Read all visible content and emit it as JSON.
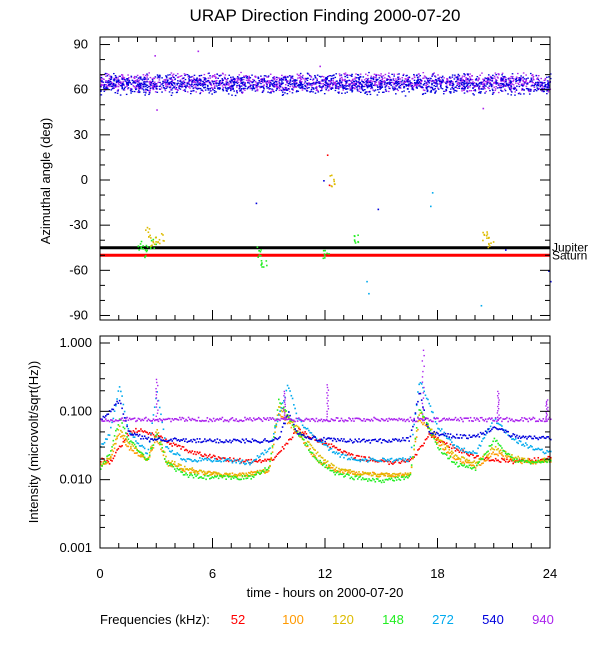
{
  "title": "URAP Direction Finding  2000-07-20",
  "xlabel": "time - hours on 2000-07-20",
  "legend_label": "Frequencies (kHz):",
  "colors": {
    "52": "#ff0000",
    "100": "#ff9900",
    "120": "#ddbb00",
    "148": "#22ee22",
    "272": "#00aaee",
    "540": "#0000dd",
    "940": "#aa22ee",
    "jupiter": "#000000",
    "saturn": "#ff0000"
  },
  "chart_data": [
    {
      "type": "scatter",
      "title": "URAP Direction Finding  2000-07-20",
      "ylabel": "Azimuthal angle (deg)",
      "xlim": [
        0,
        24
      ],
      "ylim": [
        -93,
        95
      ],
      "x_ticks": [
        0,
        6,
        12,
        18,
        24
      ],
      "y_ticks": [
        90,
        60,
        30,
        0,
        -30,
        -60,
        -90
      ],
      "reference_lines": [
        {
          "name": "Jupiter",
          "y": -45,
          "color": "#000000"
        },
        {
          "name": "Saturn",
          "y": -50,
          "color": "#ff0000"
        }
      ],
      "series": [
        {
          "name": "940",
          "band": {
            "x": [
              0,
              24
            ],
            "y_range": [
              58,
              72
            ]
          },
          "outliers": [
            [
              2.9,
              83
            ],
            [
              5.2,
              86
            ],
            [
              3.0,
              47
            ],
            [
              11.7,
              76
            ],
            [
              20.4,
              48
            ]
          ]
        },
        {
          "name": "540",
          "band": {
            "x": [
              0,
              24
            ],
            "y_range": [
              56,
              72
            ]
          },
          "points": [
            [
              8.3,
              -15
            ],
            [
              11.9,
              0
            ],
            [
              14.8,
              -19
            ],
            [
              21.6,
              -46
            ],
            [
              23.9,
              -60
            ],
            [
              24.0,
              -67
            ]
          ]
        },
        {
          "name": "148",
          "clusters": [
            [
              2.1,
              -44
            ],
            [
              2.4,
              -47
            ],
            [
              2.8,
              -41
            ],
            [
              8.4,
              -47
            ],
            [
              8.7,
              -55
            ],
            [
              12.0,
              -49
            ],
            [
              13.6,
              -40
            ]
          ]
        },
        {
          "name": "120",
          "clusters": [
            [
              2.5,
              -35
            ],
            [
              2.8,
              -40
            ],
            [
              3.2,
              -38
            ],
            [
              12.4,
              0
            ],
            [
              20.5,
              -37
            ],
            [
              20.8,
              -41
            ]
          ]
        },
        {
          "name": "272",
          "points": [
            [
              14.2,
              -67
            ],
            [
              14.3,
              -75
            ],
            [
              17.7,
              -8
            ],
            [
              17.6,
              -17
            ],
            [
              20.3,
              -83
            ]
          ]
        },
        {
          "name": "52",
          "points": [
            [
              12.1,
              17
            ],
            [
              12.2,
              -3
            ]
          ]
        }
      ]
    },
    {
      "type": "line",
      "ylabel": "Intensity (microvolt/sqrt(Hz))",
      "xlim": [
        0,
        24
      ],
      "y_scale": "log",
      "ylim": [
        0.001,
        1.0
      ],
      "x_ticks": [
        0,
        6,
        12,
        18,
        24
      ],
      "y_ticks": [
        1.0,
        0.1,
        0.01,
        0.001
      ],
      "y_tick_labels": [
        "1.000",
        "0.100",
        "0.010",
        "0.001"
      ],
      "series": [
        {
          "name": "52",
          "points": [
            [
              0,
              0.02
            ],
            [
              0.5,
              0.018
            ],
            [
              1.0,
              0.03
            ],
            [
              1.5,
              0.05
            ],
            [
              2.0,
              0.055
            ],
            [
              3.0,
              0.045
            ],
            [
              4.0,
              0.032
            ],
            [
              5.0,
              0.025
            ],
            [
              6.0,
              0.022
            ],
            [
              7.0,
              0.02
            ],
            [
              8.0,
              0.019
            ],
            [
              9.0,
              0.019
            ],
            [
              9.5,
              0.025
            ],
            [
              10.5,
              0.055
            ],
            [
              11.5,
              0.04
            ],
            [
              12.5,
              0.03
            ],
            [
              13.5,
              0.022
            ],
            [
              14.5,
              0.02
            ],
            [
              15.5,
              0.018
            ],
            [
              16.5,
              0.02
            ],
            [
              17.0,
              0.028
            ],
            [
              17.5,
              0.045
            ],
            [
              18.0,
              0.04
            ],
            [
              19.0,
              0.028
            ],
            [
              20.0,
              0.022
            ],
            [
              21.0,
              0.02
            ],
            [
              22.0,
              0.019
            ],
            [
              23.0,
              0.02
            ],
            [
              24.0,
              0.021
            ]
          ]
        },
        {
          "name": "100",
          "points": [
            [
              0,
              0.017
            ],
            [
              0.5,
              0.02
            ],
            [
              1.0,
              0.05
            ],
            [
              1.5,
              0.03
            ],
            [
              2.5,
              0.02
            ],
            [
              3.0,
              0.04
            ],
            [
              3.5,
              0.018
            ],
            [
              4.5,
              0.014
            ],
            [
              5.5,
              0.013
            ],
            [
              6.5,
              0.012
            ],
            [
              7.5,
              0.012
            ],
            [
              9.0,
              0.014
            ],
            [
              9.5,
              0.1
            ],
            [
              10.5,
              0.05
            ],
            [
              11.5,
              0.02
            ],
            [
              12.5,
              0.014
            ],
            [
              13.5,
              0.013
            ],
            [
              15.0,
              0.012
            ],
            [
              16.5,
              0.012
            ],
            [
              17.0,
              0.08
            ],
            [
              18.0,
              0.035
            ],
            [
              19.0,
              0.02
            ],
            [
              20.0,
              0.016
            ],
            [
              21.0,
              0.025
            ],
            [
              22.0,
              0.02
            ],
            [
              23.0,
              0.018
            ],
            [
              24.0,
              0.019
            ]
          ]
        },
        {
          "name": "120",
          "points": [
            [
              0,
              0.016
            ],
            [
              0.5,
              0.022
            ],
            [
              1.0,
              0.06
            ],
            [
              1.5,
              0.035
            ],
            [
              2.5,
              0.02
            ],
            [
              3.0,
              0.06
            ],
            [
              3.5,
              0.02
            ],
            [
              4.5,
              0.015
            ],
            [
              5.5,
              0.013
            ],
            [
              6.5,
              0.012
            ],
            [
              8.0,
              0.012
            ],
            [
              9.0,
              0.015
            ],
            [
              9.5,
              0.12
            ],
            [
              10.5,
              0.06
            ],
            [
              11.5,
              0.025
            ],
            [
              12.5,
              0.015
            ],
            [
              13.5,
              0.013
            ],
            [
              15.0,
              0.012
            ],
            [
              16.5,
              0.012
            ],
            [
              17.0,
              0.1
            ],
            [
              18.0,
              0.04
            ],
            [
              19.0,
              0.022
            ],
            [
              20.0,
              0.018
            ],
            [
              21.0,
              0.03
            ],
            [
              22.0,
              0.022
            ],
            [
              23.0,
              0.019
            ],
            [
              24.0,
              0.02
            ]
          ]
        },
        {
          "name": "148",
          "points": [
            [
              0,
              0.015
            ],
            [
              0.5,
              0.025
            ],
            [
              1.0,
              0.08
            ],
            [
              1.5,
              0.04
            ],
            [
              2.5,
              0.02
            ],
            [
              3.0,
              0.05
            ],
            [
              3.5,
              0.018
            ],
            [
              4.5,
              0.012
            ],
            [
              5.5,
              0.011
            ],
            [
              6.5,
              0.011
            ],
            [
              8.0,
              0.011
            ],
            [
              9.0,
              0.016
            ],
            [
              9.5,
              0.15
            ],
            [
              10.5,
              0.05
            ],
            [
              11.5,
              0.02
            ],
            [
              12.5,
              0.013
            ],
            [
              13.5,
              0.011
            ],
            [
              15.0,
              0.01
            ],
            [
              16.5,
              0.011
            ],
            [
              17.0,
              0.12
            ],
            [
              18.0,
              0.03
            ],
            [
              19.0,
              0.017
            ],
            [
              20.0,
              0.015
            ],
            [
              21.0,
              0.04
            ],
            [
              22.0,
              0.02
            ],
            [
              23.0,
              0.018
            ],
            [
              24.0,
              0.02
            ]
          ]
        },
        {
          "name": "272",
          "points": [
            [
              0,
              0.03
            ],
            [
              0.5,
              0.05
            ],
            [
              1.0,
              0.25
            ],
            [
              1.5,
              0.05
            ],
            [
              2.5,
              0.025
            ],
            [
              3.0,
              0.2
            ],
            [
              3.5,
              0.03
            ],
            [
              4.5,
              0.02
            ],
            [
              5.5,
              0.02
            ],
            [
              6.5,
              0.02
            ],
            [
              8.0,
              0.018
            ],
            [
              9.0,
              0.03
            ],
            [
              10.0,
              0.25
            ],
            [
              10.5,
              0.08
            ],
            [
              11.5,
              0.04
            ],
            [
              12.5,
              0.025
            ],
            [
              13.5,
              0.02
            ],
            [
              15.0,
              0.02
            ],
            [
              16.5,
              0.02
            ],
            [
              17.0,
              0.3
            ],
            [
              18.0,
              0.06
            ],
            [
              19.0,
              0.03
            ],
            [
              20.0,
              0.025
            ],
            [
              21.0,
              0.08
            ],
            [
              22.0,
              0.04
            ],
            [
              23.0,
              0.03
            ],
            [
              24.0,
              0.025
            ]
          ]
        },
        {
          "name": "540",
          "points": [
            [
              0,
              0.08
            ],
            [
              0.5,
              0.1
            ],
            [
              1.0,
              0.15
            ],
            [
              1.5,
              0.05
            ],
            [
              2.5,
              0.04
            ],
            [
              3.5,
              0.04
            ],
            [
              4.5,
              0.038
            ],
            [
              5.5,
              0.038
            ],
            [
              7.0,
              0.038
            ],
            [
              8.5,
              0.038
            ],
            [
              9.5,
              0.04
            ],
            [
              10.0,
              0.1
            ],
            [
              10.5,
              0.05
            ],
            [
              11.5,
              0.04
            ],
            [
              13.0,
              0.038
            ],
            [
              15.0,
              0.038
            ],
            [
              16.5,
              0.04
            ],
            [
              17.0,
              0.2
            ],
            [
              17.5,
              0.05
            ],
            [
              18.5,
              0.045
            ],
            [
              20.0,
              0.043
            ],
            [
              21.0,
              0.06
            ],
            [
              22.0,
              0.045
            ],
            [
              23.0,
              0.042
            ],
            [
              24.0,
              0.042
            ]
          ]
        },
        {
          "name": "940",
          "points": [
            [
              0,
              0.078
            ],
            [
              24,
              0.078
            ]
          ],
          "spikes": [
            [
              3.0,
              0.3
            ],
            [
              9.8,
              0.2
            ],
            [
              12.1,
              0.25
            ],
            [
              17.2,
              0.8
            ],
            [
              21.2,
              0.2
            ],
            [
              23.8,
              0.15
            ]
          ]
        }
      ]
    }
  ],
  "legend_items": [
    "52",
    "100",
    "120",
    "148",
    "272",
    "540",
    "940"
  ]
}
